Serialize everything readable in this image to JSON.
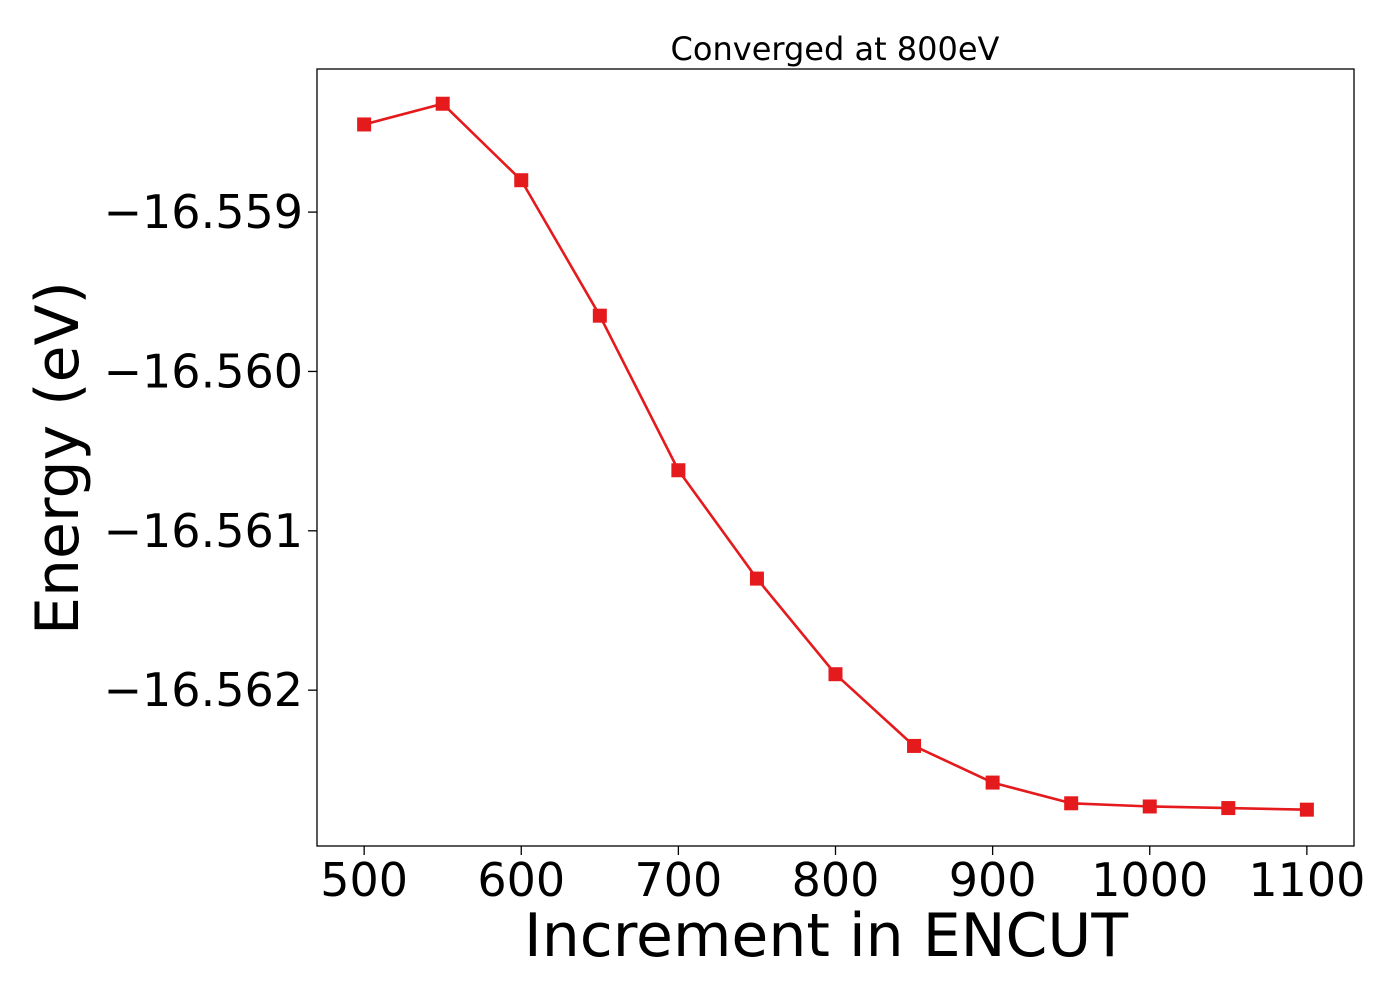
{
  "chart_data": {
    "type": "line",
    "title": "Converged at 800eV",
    "xlabel": "Increment in ENCUT",
    "ylabel": "Energy (eV)",
    "xlim": [
      470,
      1130
    ],
    "ylim": [
      -16.562978,
      -16.558102
    ],
    "x_ticks": [
      500,
      600,
      700,
      800,
      900,
      1000,
      1100
    ],
    "x_tick_labels": [
      "500",
      "600",
      "700",
      "800",
      "900",
      "1000",
      "1100"
    ],
    "y_ticks": [
      -16.559,
      -16.56,
      -16.561,
      -16.562
    ],
    "y_tick_labels": [
      "−16.559",
      "−16.560",
      "−16.561",
      "−16.562"
    ],
    "grid": false,
    "series": [
      {
        "color": "#e41a1c",
        "marker": "square",
        "x": [
          500,
          550,
          600,
          650,
          700,
          750,
          800,
          850,
          900,
          950,
          1000,
          1050,
          1100
        ],
        "y": [
          -16.55845,
          -16.55832,
          -16.5588,
          -16.55965,
          -16.56062,
          -16.5613,
          -16.5619,
          -16.56235,
          -16.56258,
          -16.56271,
          -16.56273,
          -16.56274,
          -16.56275
        ]
      }
    ]
  }
}
